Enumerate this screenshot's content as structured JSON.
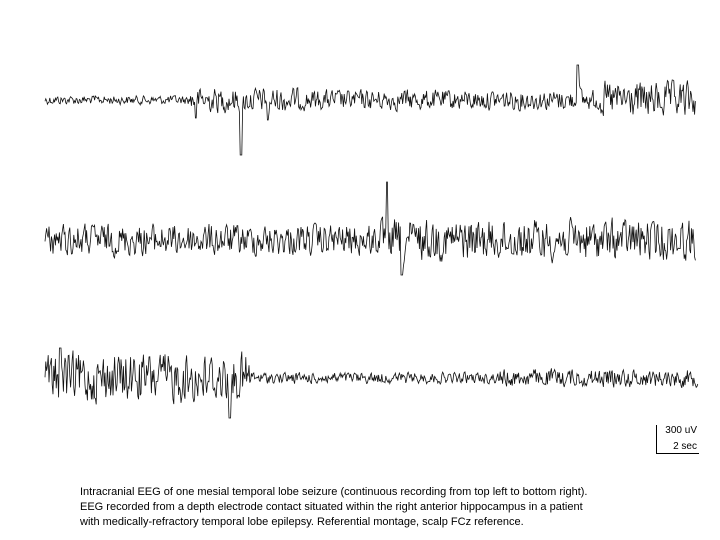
{
  "scale_bar": {
    "amplitude": "300 uV",
    "time": "2 sec"
  },
  "caption": [
    "Intracranial EEG of one mesial temporal lobe seizure (continuous recording from top left to bottom right).",
    "EEG recorded from a depth electrode contact situated within the right anterior hippocampus in a patient",
    "with medically-refractory temporal lobe epilepsy. Referential montage, scalp FCz reference."
  ]
}
